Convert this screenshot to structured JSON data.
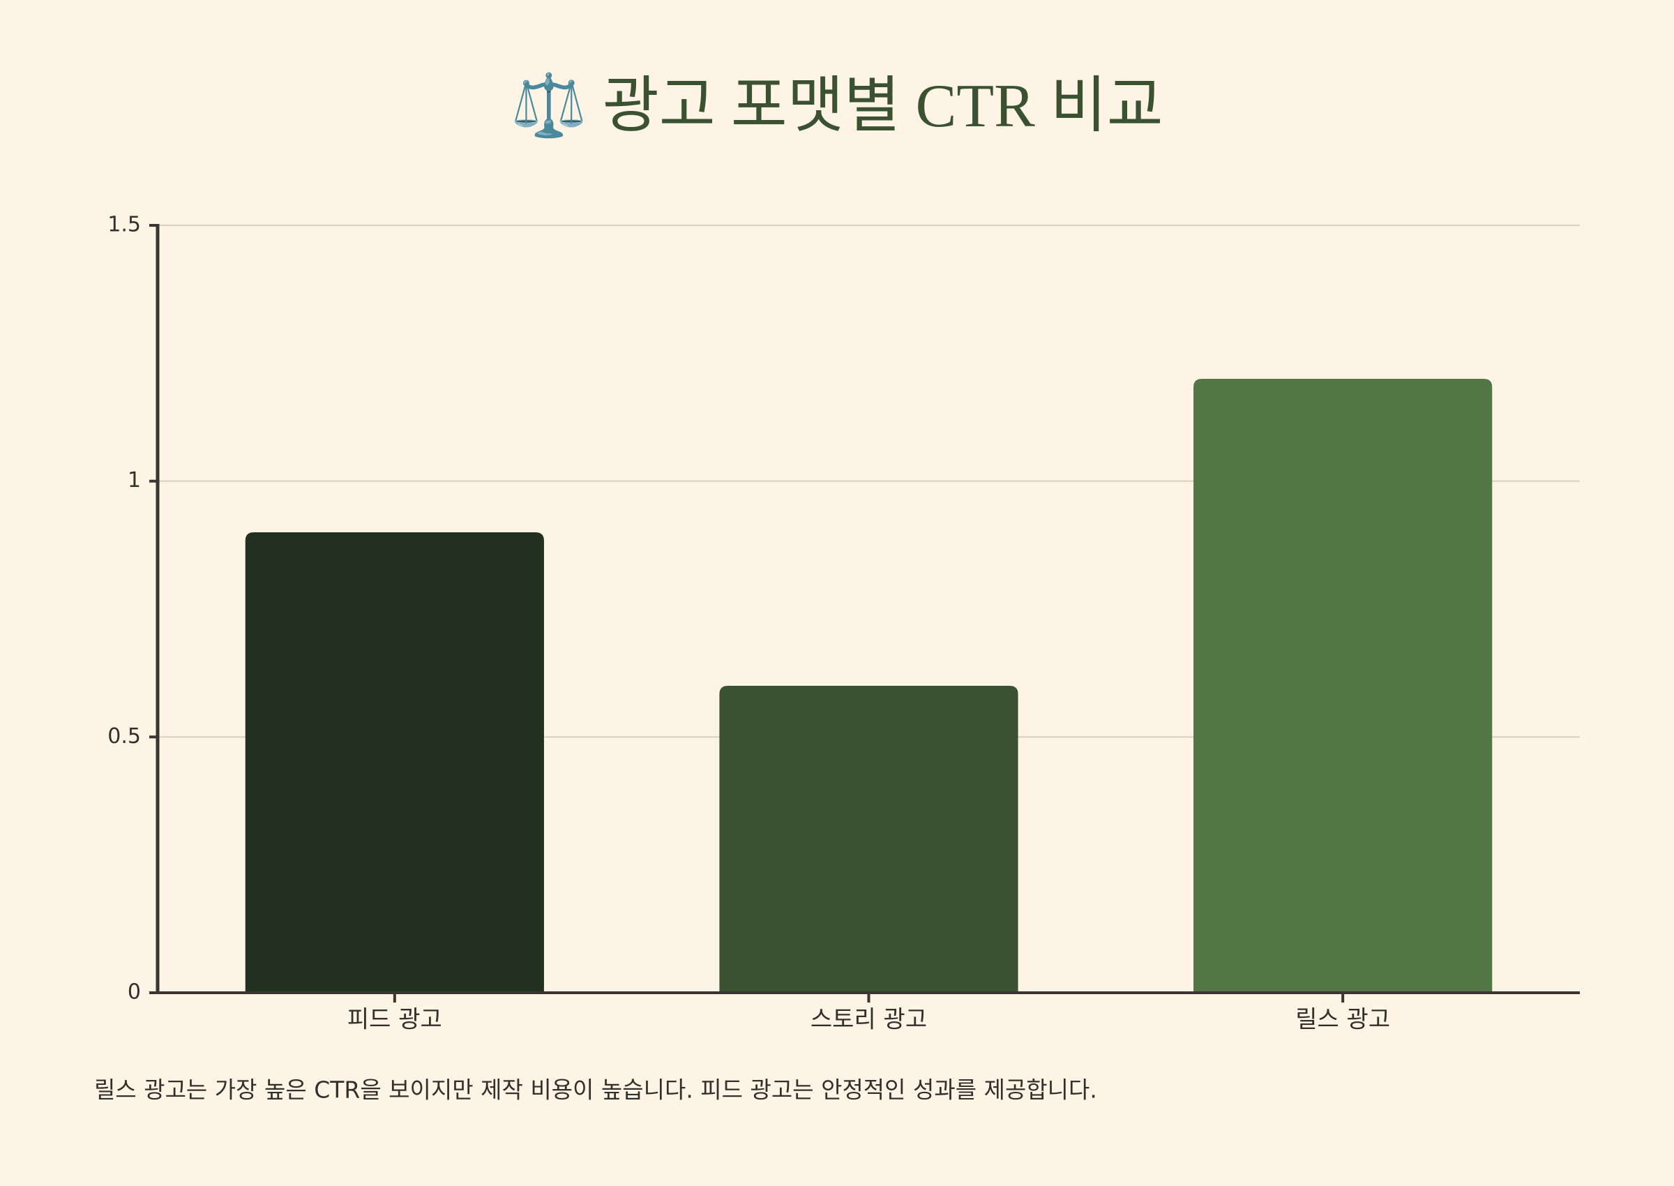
{
  "chart_data": {
    "type": "bar",
    "title": "⚖️ 광고 포맷별 CTR 비교",
    "categories": [
      "피드 광고",
      "스토리 광고",
      "릴스 광고"
    ],
    "values": [
      0.9,
      0.6,
      1.2
    ],
    "colors": [
      "#22301f",
      "#3b5232",
      "#537645"
    ],
    "ylim": [
      0,
      1.5
    ],
    "yticks": [
      0,
      0.5,
      1,
      1.5
    ],
    "grid": true,
    "caption": "릴스 광고는 가장 높은 CTR을 보이지만 제작 비용이 높습니다. 피드 광고는 안정적인 성과를 제공합니다."
  }
}
